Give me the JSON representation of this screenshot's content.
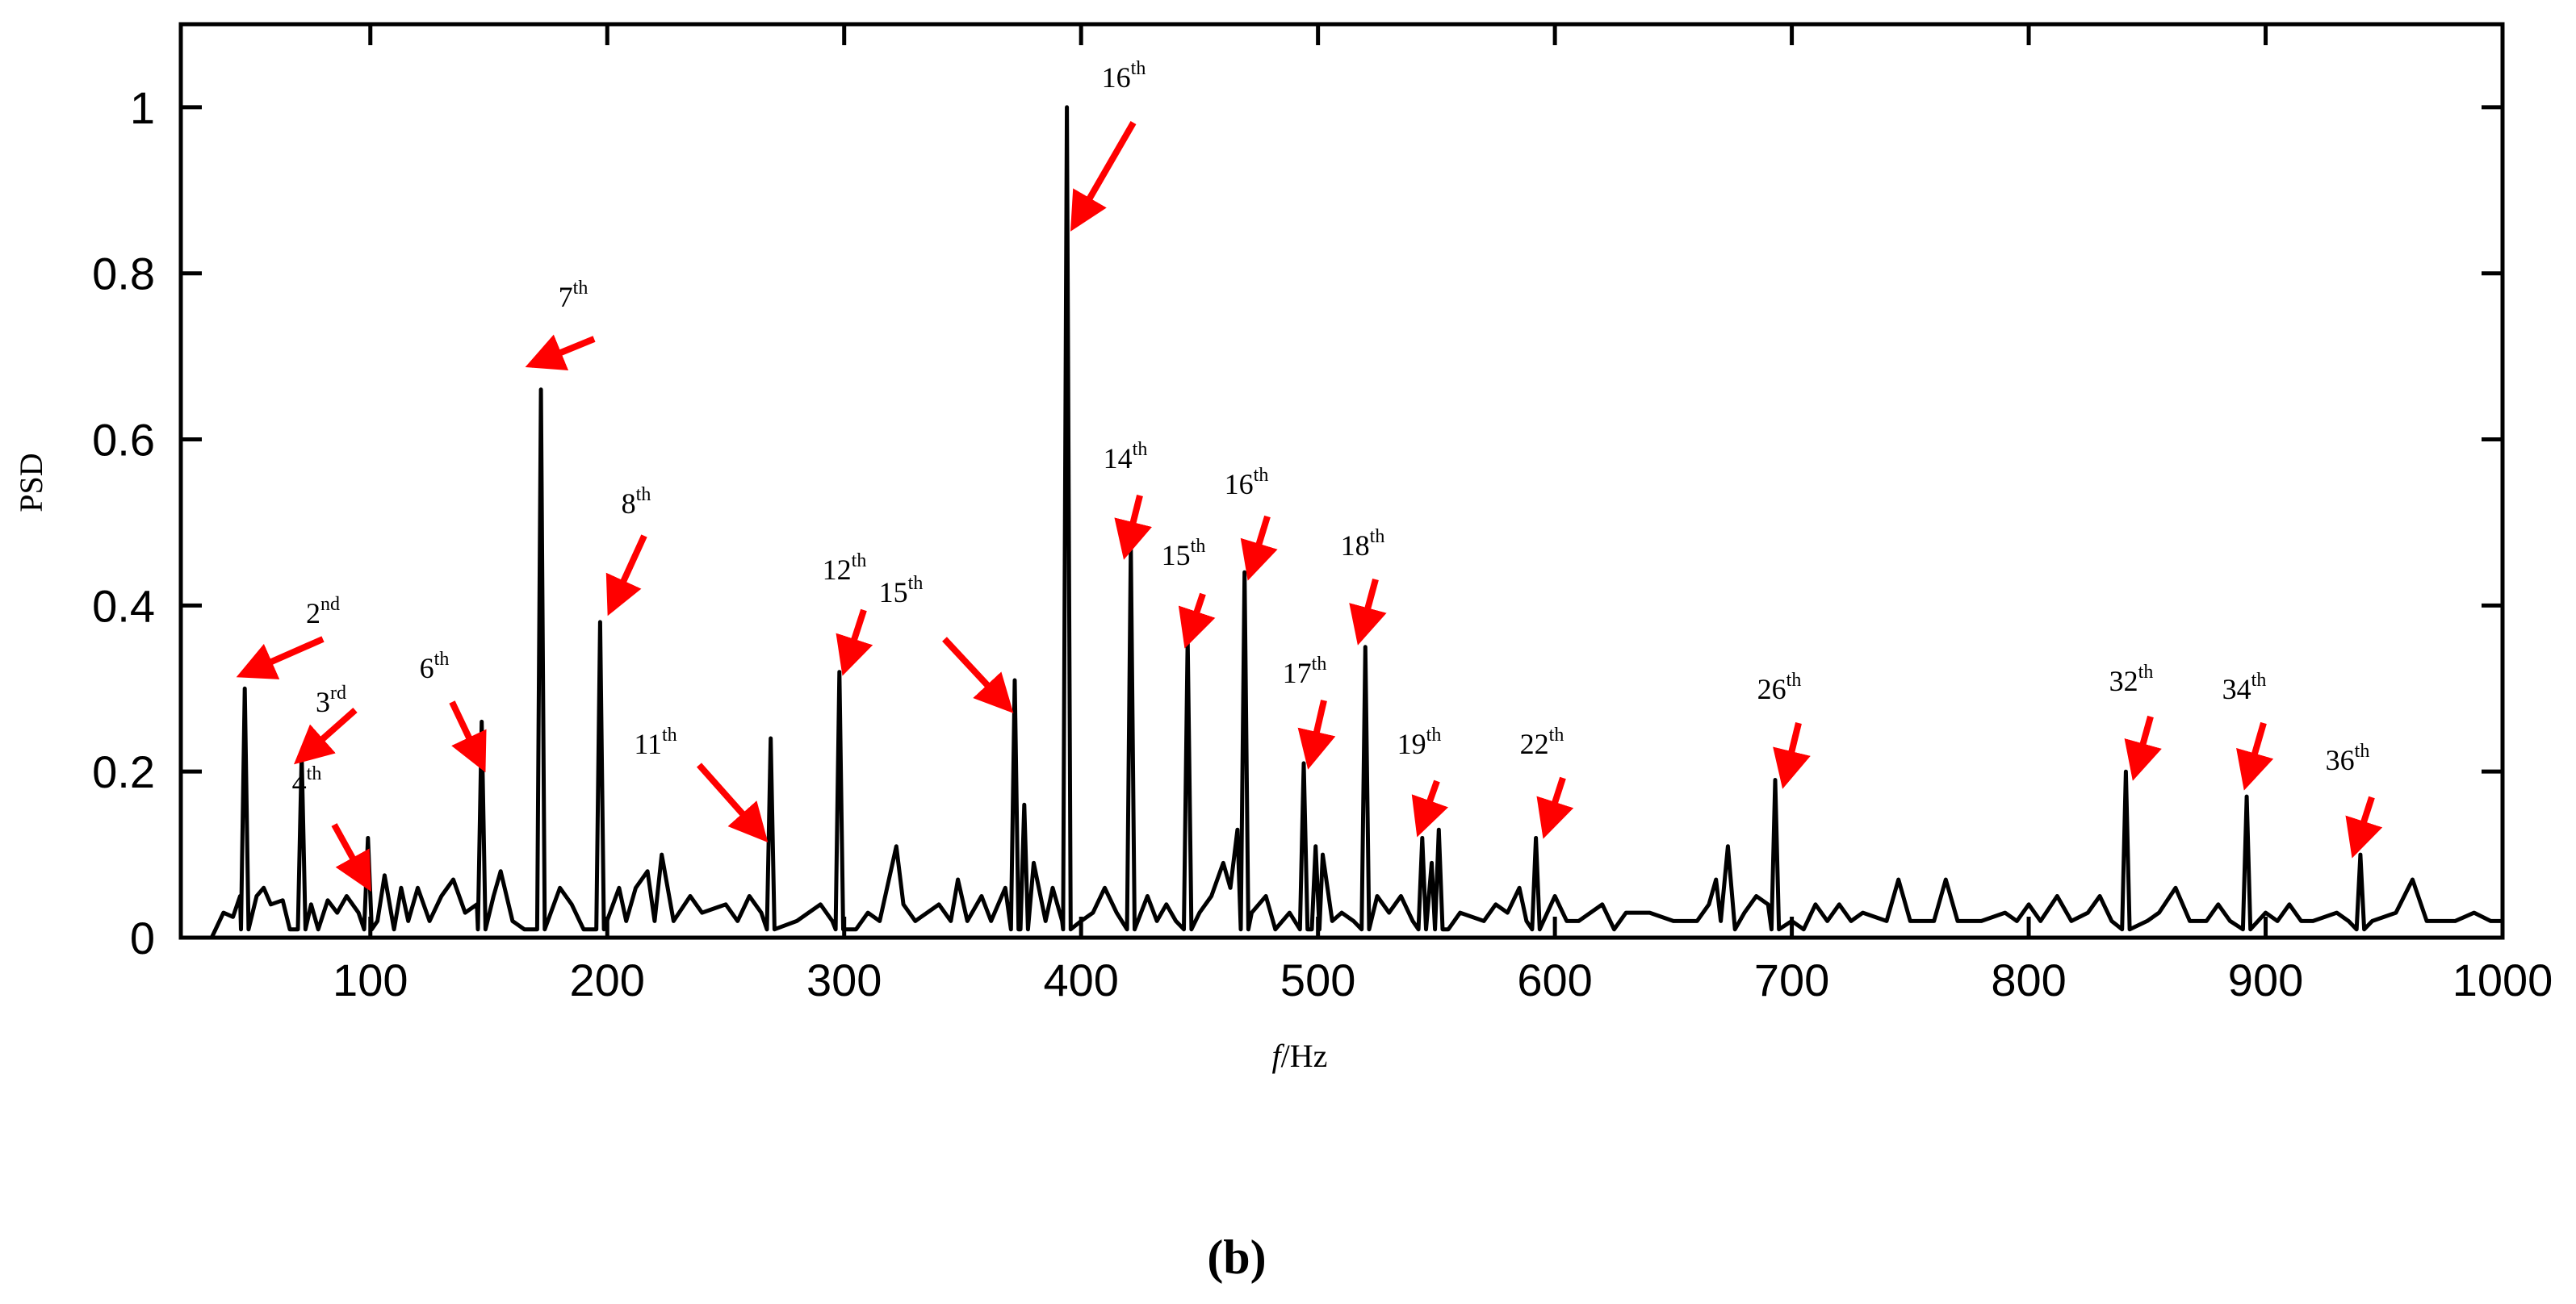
{
  "chart_data": {
    "type": "line",
    "title": "",
    "xlabel_italic": "f",
    "xlabel_rest": "/Hz",
    "ylabel": "PSD",
    "xlim": [
      20,
      1000
    ],
    "ylim": [
      0,
      1.1
    ],
    "x_ticks": [
      100,
      200,
      300,
      400,
      500,
      600,
      700,
      800,
      900,
      1000
    ],
    "y_ticks": [
      0,
      0.2,
      0.4,
      0.6,
      0.8,
      1
    ],
    "y_tick_labels": [
      "0",
      "0.2",
      "0.4",
      "0.6",
      "0.8",
      "1"
    ],
    "series": [
      {
        "name": "PSD",
        "color": "#000000",
        "baseline_points": [
          [
            33,
            0
          ],
          [
            38,
            0.03
          ],
          [
            42,
            0.025
          ],
          [
            45,
            0.05
          ],
          [
            52,
            0.05
          ],
          [
            55,
            0.06
          ],
          [
            58,
            0.04
          ],
          [
            63,
            0.045
          ],
          [
            66,
            0.01
          ],
          [
            75,
            0.04
          ],
          [
            78,
            0.01
          ],
          [
            82,
            0.045
          ],
          [
            86,
            0.03
          ],
          [
            90,
            0.05
          ],
          [
            95,
            0.03
          ],
          [
            103,
            0.02
          ],
          [
            106,
            0.075
          ],
          [
            110,
            0.01
          ],
          [
            113,
            0.06
          ],
          [
            116,
            0.02
          ],
          [
            120,
            0.06
          ],
          [
            125,
            0.02
          ],
          [
            130,
            0.05
          ],
          [
            135,
            0.07
          ],
          [
            140,
            0.03
          ],
          [
            145,
            0.04
          ],
          [
            152,
            0.05
          ],
          [
            155,
            0.08
          ],
          [
            160,
            0.02
          ],
          [
            165,
            0.01
          ],
          [
            180,
            0.06
          ],
          [
            185,
            0.04
          ],
          [
            190,
            0.01
          ],
          [
            205,
            0.06
          ],
          [
            208,
            0.02
          ],
          [
            212,
            0.06
          ],
          [
            217,
            0.08
          ],
          [
            220,
            0.02
          ],
          [
            223,
            0.1
          ],
          [
            228,
            0.02
          ],
          [
            235,
            0.05
          ],
          [
            240,
            0.03
          ],
          [
            250,
            0.04
          ],
          [
            255,
            0.02
          ],
          [
            260,
            0.05
          ],
          [
            265,
            0.03
          ],
          [
            280,
            0.02
          ],
          [
            285,
            0.03
          ],
          [
            290,
            0.04
          ],
          [
            295,
            0.02
          ],
          [
            305,
            0.01
          ],
          [
            310,
            0.03
          ],
          [
            315,
            0.02
          ],
          [
            322,
            0.11
          ],
          [
            325,
            0.04
          ],
          [
            330,
            0.02
          ],
          [
            340,
            0.04
          ],
          [
            345,
            0.02
          ],
          [
            348,
            0.07
          ],
          [
            352,
            0.02
          ],
          [
            358,
            0.05
          ],
          [
            362,
            0.02
          ],
          [
            368,
            0.06
          ],
          [
            380,
            0.09
          ],
          [
            385,
            0.02
          ],
          [
            388,
            0.06
          ],
          [
            392,
            0.02
          ],
          [
            400,
            0.02
          ],
          [
            405,
            0.03
          ],
          [
            410,
            0.06
          ],
          [
            415,
            0.03
          ],
          [
            428,
            0.05
          ],
          [
            432,
            0.02
          ],
          [
            436,
            0.04
          ],
          [
            440,
            0.02
          ],
          [
            450,
            0.03
          ],
          [
            455,
            0.05
          ],
          [
            460,
            0.09
          ],
          [
            463,
            0.06
          ],
          [
            466,
            0.13
          ],
          [
            472,
            0.03
          ],
          [
            478,
            0.05
          ],
          [
            482,
            0.01
          ],
          [
            488,
            0.03
          ],
          [
            502,
            0.1
          ],
          [
            506,
            0.02
          ],
          [
            510,
            0.03
          ],
          [
            515,
            0.02
          ],
          [
            525,
            0.05
          ],
          [
            530,
            0.03
          ],
          [
            535,
            0.05
          ],
          [
            540,
            0.02
          ],
          [
            548,
            0.09
          ],
          [
            555,
            0.01
          ],
          [
            560,
            0.03
          ],
          [
            570,
            0.02
          ],
          [
            575,
            0.04
          ],
          [
            580,
            0.03
          ],
          [
            585,
            0.06
          ],
          [
            588,
            0.02
          ],
          [
            600,
            0.05
          ],
          [
            605,
            0.02
          ],
          [
            610,
            0.02
          ],
          [
            620,
            0.04
          ],
          [
            625,
            0.01
          ],
          [
            630,
            0.03
          ],
          [
            640,
            0.03
          ],
          [
            650,
            0.02
          ],
          [
            660,
            0.02
          ],
          [
            665,
            0.04
          ],
          [
            668,
            0.07
          ],
          [
            670,
            0.02
          ],
          [
            673,
            0.11
          ],
          [
            676,
            0.01
          ],
          [
            680,
            0.03
          ],
          [
            685,
            0.05
          ],
          [
            690,
            0.04
          ],
          [
            700,
            0.02
          ],
          [
            705,
            0.01
          ],
          [
            710,
            0.04
          ],
          [
            715,
            0.02
          ],
          [
            720,
            0.04
          ],
          [
            725,
            0.02
          ],
          [
            730,
            0.03
          ],
          [
            740,
            0.02
          ],
          [
            745,
            0.07
          ],
          [
            750,
            0.02
          ],
          [
            760,
            0.02
          ],
          [
            765,
            0.07
          ],
          [
            770,
            0.02
          ],
          [
            780,
            0.02
          ],
          [
            790,
            0.03
          ],
          [
            795,
            0.02
          ],
          [
            800,
            0.04
          ],
          [
            805,
            0.02
          ],
          [
            812,
            0.05
          ],
          [
            818,
            0.02
          ],
          [
            825,
            0.03
          ],
          [
            830,
            0.05
          ],
          [
            835,
            0.02
          ],
          [
            850,
            0.02
          ],
          [
            855,
            0.03
          ],
          [
            862,
            0.06
          ],
          [
            868,
            0.02
          ],
          [
            875,
            0.02
          ],
          [
            880,
            0.04
          ],
          [
            885,
            0.02
          ],
          [
            900,
            0.03
          ],
          [
            905,
            0.02
          ],
          [
            910,
            0.04
          ],
          [
            915,
            0.02
          ],
          [
            920,
            0.02
          ],
          [
            930,
            0.03
          ],
          [
            935,
            0.02
          ],
          [
            945,
            0.02
          ],
          [
            955,
            0.03
          ],
          [
            962,
            0.07
          ],
          [
            968,
            0.02
          ],
          [
            980,
            0.02
          ],
          [
            988,
            0.03
          ],
          [
            995,
            0.02
          ],
          [
            1000,
            0.02
          ]
        ],
        "peaks": [
          [
            47,
            0.3
          ],
          [
            71,
            0.22
          ],
          [
            99,
            0.12
          ],
          [
            147,
            0.26
          ],
          [
            172,
            0.66
          ],
          [
            197,
            0.38
          ],
          [
            269,
            0.24
          ],
          [
            298,
            0.32
          ],
          [
            372,
            0.31
          ],
          [
            376,
            0.16
          ],
          [
            394,
            1.0
          ],
          [
            421,
            0.47
          ],
          [
            445,
            0.36
          ],
          [
            469,
            0.44
          ],
          [
            494,
            0.21
          ],
          [
            499,
            0.11
          ],
          [
            520,
            0.35
          ],
          [
            544,
            0.12
          ],
          [
            551,
            0.13
          ],
          [
            592,
            0.12
          ],
          [
            693,
            0.19
          ],
          [
            841,
            0.2
          ],
          [
            892,
            0.17
          ],
          [
            940,
            0.1
          ]
        ]
      }
    ],
    "annotations": [
      {
        "base": "2",
        "sup": "nd"
      },
      {
        "base": "3",
        "sup": "rd"
      },
      {
        "base": "4",
        "sup": "th"
      },
      {
        "base": "6",
        "sup": "th"
      },
      {
        "base": "7",
        "sup": "th"
      },
      {
        "base": "8",
        "sup": "th"
      },
      {
        "base": "11",
        "sup": "th"
      },
      {
        "base": "12",
        "sup": "th"
      },
      {
        "base": "15",
        "sup": "th"
      },
      {
        "base": "16",
        "sup": "th"
      },
      {
        "base": "14",
        "sup": "th"
      },
      {
        "base": "15",
        "sup": "th"
      },
      {
        "base": "16",
        "sup": "th"
      },
      {
        "base": "17",
        "sup": "th"
      },
      {
        "base": "18",
        "sup": "th"
      },
      {
        "base": "19",
        "sup": "th"
      },
      {
        "base": "22",
        "sup": "th"
      },
      {
        "base": "26",
        "sup": "th"
      },
      {
        "base": "32",
        "sup": "th"
      },
      {
        "base": "34",
        "sup": "th"
      },
      {
        "base": "36",
        "sup": "th"
      }
    ],
    "arrow_color": "#ff0000",
    "caption": "(b)"
  }
}
